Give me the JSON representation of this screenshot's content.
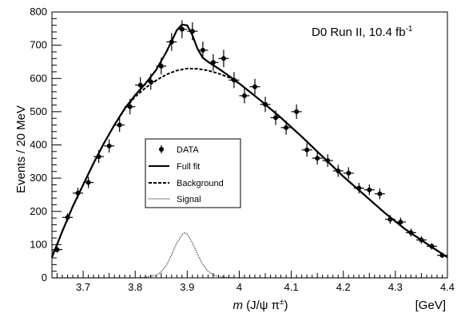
{
  "chart_data": {
    "type": "scatter",
    "annotation": {
      "main": "D0 Run II, 10.4 fb",
      "sup": "-1"
    },
    "xlabel": {
      "italic": "m",
      "rest": " (J/ψ π",
      "sup": "±",
      "close": ")"
    },
    "xunit": "[GeV]",
    "ylabel": "Events / 20 MeV",
    "xlim": [
      3.64,
      4.4
    ],
    "ylim": [
      0,
      800
    ],
    "xticks": [
      3.7,
      3.8,
      3.9,
      4.0,
      4.1,
      4.2,
      4.3,
      4.4
    ],
    "xticklabels": [
      "3.7",
      "3.8",
      "3.9",
      "4",
      "4.1",
      "4.2",
      "4.3",
      "4.4"
    ],
    "yticks": [
      0,
      100,
      200,
      300,
      400,
      500,
      600,
      700,
      800
    ],
    "yticklabels": [
      "0",
      "100",
      "200",
      "300",
      "400",
      "500",
      "600",
      "700",
      "800"
    ],
    "grid": false,
    "legend": {
      "placement": "center-left",
      "entries": [
        {
          "label": "DATA",
          "style": "marker"
        },
        {
          "label": "Full fit",
          "style": "solid"
        },
        {
          "label": "Background",
          "style": "dashed"
        },
        {
          "label": "Signal",
          "style": "dotted"
        }
      ]
    },
    "series": [
      {
        "name": "DATA",
        "style": "points-with-error-bars",
        "x": [
          3.65,
          3.67,
          3.69,
          3.71,
          3.73,
          3.75,
          3.77,
          3.79,
          3.81,
          3.83,
          3.85,
          3.87,
          3.89,
          3.91,
          3.93,
          3.95,
          3.97,
          3.99,
          4.01,
          4.03,
          4.05,
          4.07,
          4.09,
          4.11,
          4.13,
          4.15,
          4.17,
          4.19,
          4.21,
          4.23,
          4.25,
          4.27,
          4.29,
          4.31,
          4.33,
          4.35,
          4.37,
          4.39
        ],
        "y": [
          85,
          182,
          255,
          287,
          365,
          397,
          460,
          515,
          580,
          590,
          637,
          710,
          748,
          742,
          685,
          648,
          660,
          595,
          548,
          575,
          522,
          482,
          452,
          500,
          385,
          360,
          353,
          322,
          315,
          270,
          265,
          253,
          176,
          168,
          136,
          114,
          95,
          68
        ],
        "yerr": [
          9,
          13,
          16,
          17,
          19,
          20,
          21,
          23,
          24,
          24,
          25,
          27,
          27,
          27,
          26,
          25,
          26,
          24,
          23,
          24,
          23,
          22,
          21,
          22,
          20,
          19,
          19,
          18,
          18,
          16,
          16,
          16,
          13,
          13,
          12,
          11,
          10,
          8
        ],
        "xerr": 0.01
      },
      {
        "name": "Full fit",
        "style": "solid",
        "x": [
          3.64,
          3.66,
          3.68,
          3.7,
          3.72,
          3.74,
          3.76,
          3.78,
          3.8,
          3.82,
          3.84,
          3.86,
          3.87,
          3.88,
          3.89,
          3.9,
          3.91,
          3.92,
          3.93,
          3.94,
          3.96,
          3.98,
          4.0,
          4.04,
          4.08,
          4.12,
          4.16,
          4.2,
          4.24,
          4.28,
          4.32,
          4.36,
          4.4
        ],
        "y": [
          62,
          140,
          215,
          280,
          345,
          405,
          460,
          510,
          550,
          585,
          625,
          680,
          712,
          745,
          762,
          760,
          730,
          688,
          662,
          650,
          630,
          608,
          585,
          535,
          482,
          425,
          365,
          305,
          250,
          195,
          145,
          103,
          62
        ]
      },
      {
        "name": "Background",
        "style": "dashed",
        "x": [
          3.64,
          3.66,
          3.68,
          3.7,
          3.72,
          3.74,
          3.76,
          3.78,
          3.8,
          3.82,
          3.84,
          3.86,
          3.88,
          3.9,
          3.92,
          3.94,
          3.96,
          3.98,
          4.0,
          4.04,
          4.08,
          4.12,
          4.16,
          4.2,
          4.24,
          4.28,
          4.32,
          4.36,
          4.4
        ],
        "y": [
          62,
          140,
          215,
          280,
          345,
          405,
          460,
          508,
          545,
          572,
          594,
          612,
          624,
          630,
          629,
          624,
          615,
          603,
          585,
          535,
          482,
          425,
          365,
          305,
          250,
          195,
          145,
          103,
          62
        ]
      },
      {
        "name": "Signal",
        "style": "dotted",
        "x": [
          3.64,
          3.8,
          3.82,
          3.84,
          3.85,
          3.86,
          3.87,
          3.88,
          3.89,
          3.895,
          3.9,
          3.91,
          3.92,
          3.93,
          3.94,
          3.95,
          3.96,
          3.98,
          4.0,
          4.4
        ],
        "y": [
          0,
          0,
          2,
          8,
          18,
          38,
          70,
          105,
          130,
          136,
          132,
          105,
          70,
          40,
          20,
          9,
          4,
          1,
          0,
          0
        ]
      }
    ]
  }
}
